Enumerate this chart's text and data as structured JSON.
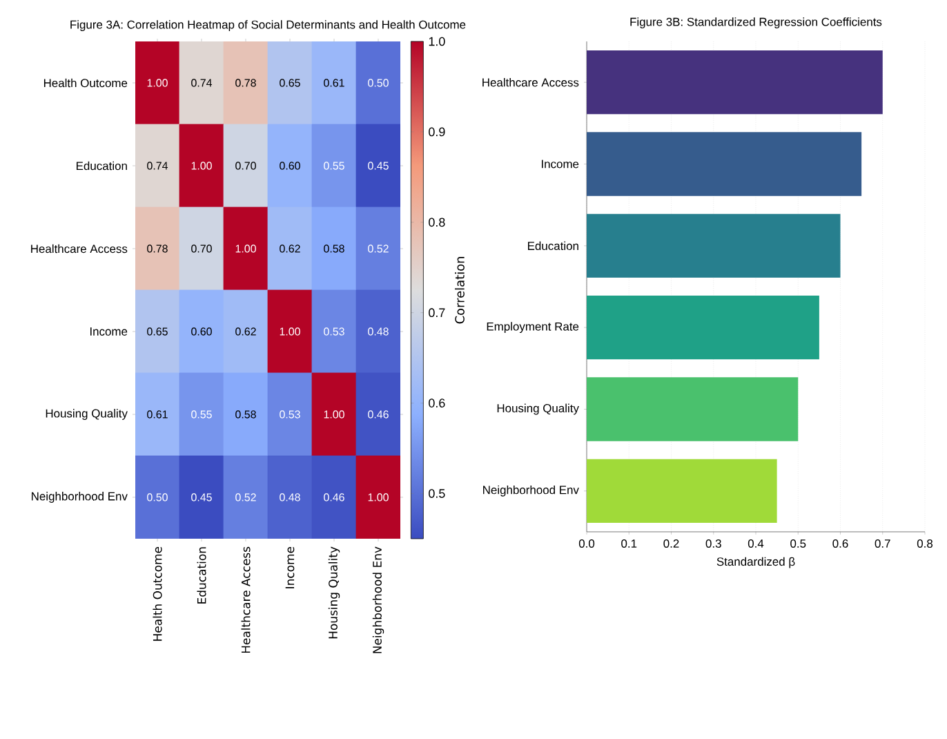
{
  "chart_data": [
    {
      "type": "heatmap",
      "title": "Figure 3A: Correlation Heatmap of Social Determinants and Health Outcome",
      "categories": [
        "Health Outcome",
        "Education",
        "Healthcare Access",
        "Income",
        "Housing Quality",
        "Neighborhood Env"
      ],
      "y_categories": [
        "Health Outcome",
        "Education",
        "Healthcare Access",
        "Income",
        "Housing Quality",
        "Neighborhood Env"
      ],
      "cells": [
        [
          1.0,
          0.74,
          0.78,
          0.65,
          0.61,
          0.5
        ],
        [
          0.74,
          1.0,
          0.7,
          0.6,
          0.55,
          0.45
        ],
        [
          0.78,
          0.7,
          1.0,
          0.62,
          0.58,
          0.52
        ],
        [
          0.65,
          0.6,
          0.62,
          1.0,
          0.53,
          0.48
        ],
        [
          0.61,
          0.55,
          0.58,
          0.53,
          1.0,
          0.46
        ],
        [
          0.5,
          0.45,
          0.52,
          0.48,
          0.46,
          1.0
        ]
      ],
      "cell_labels": [
        [
          "1.00",
          "0.74",
          "0.78",
          "0.65",
          "0.61",
          "0.50"
        ],
        [
          "0.74",
          "1.00",
          "0.70",
          "0.60",
          "0.55",
          "0.45"
        ],
        [
          "0.78",
          "0.70",
          "1.00",
          "0.62",
          "0.58",
          "0.52"
        ],
        [
          "0.65",
          "0.60",
          "0.62",
          "1.00",
          "0.53",
          "0.48"
        ],
        [
          "0.61",
          "0.55",
          "0.58",
          "0.53",
          "1.00",
          "0.46"
        ],
        [
          "0.50",
          "0.45",
          "0.52",
          "0.48",
          "0.46",
          "1.00"
        ]
      ],
      "clim": [
        0.45,
        1.0
      ],
      "cticks": [
        0.5,
        0.6,
        0.7,
        0.8,
        0.9,
        {
          "value": 1,
          "label": "1.0"
        }
      ],
      "clabel": "Correlation"
    },
    {
      "type": "bar",
      "title": "Figure 3B: Standardized Regression Coefficients",
      "orientation": "horizontal",
      "categories": [
        "Healthcare Access",
        "Income",
        "Education",
        "Employment Rate",
        "Housing Quality",
        "Neighborhood Env"
      ],
      "values": [
        0.7,
        0.65,
        0.6,
        0.55,
        0.5,
        0.45
      ],
      "colors": [
        "#46327e",
        "#365c8d",
        "#277f8e",
        "#1fa187",
        "#4ac16d",
        "#a0da39"
      ],
      "xlim": [
        0,
        0.8
      ],
      "xticks": [
        {
          "value": 0,
          "label": "0.0"
        },
        0.1,
        0.2,
        0.3,
        0.4,
        0.5,
        0.6,
        0.7,
        0.8
      ],
      "xlabel": "Standardized β",
      "grid": "x"
    }
  ]
}
